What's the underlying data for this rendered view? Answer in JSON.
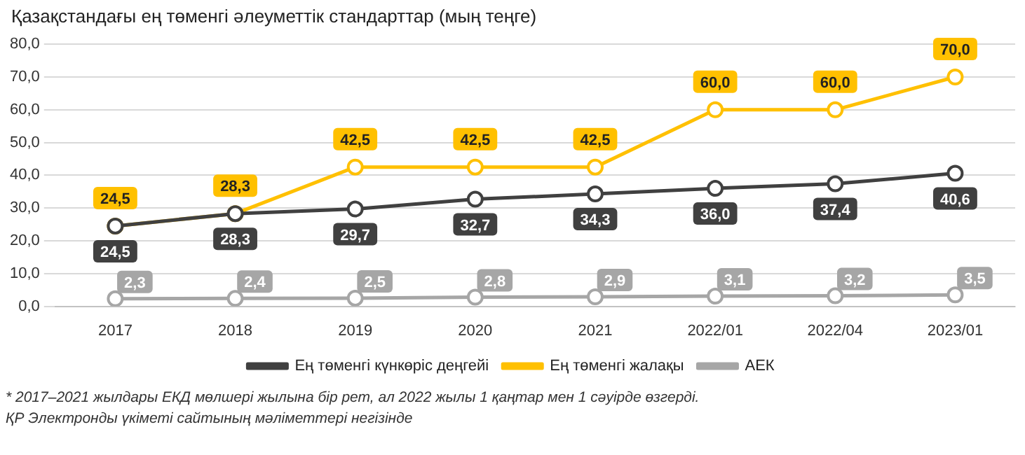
{
  "chart_data": {
    "type": "line",
    "title": "Қазақстандағы ең төменгі әлеуметтік стандарттар (мың теңге)",
    "categories": [
      "2017",
      "2018",
      "2019",
      "2020",
      "2021",
      "2022/01",
      "2022/04",
      "2023/01"
    ],
    "series": [
      {
        "name": "Ең төменгі күнкөріс деңгейі",
        "color": "#404040",
        "values": [
          24.5,
          28.3,
          29.7,
          32.7,
          34.3,
          36.0,
          37.4,
          40.6
        ],
        "value_labels": [
          "24,5",
          "28,3",
          "29,7",
          "32,7",
          "34,3",
          "36,0",
          "37,4",
          "40,6"
        ]
      },
      {
        "name": "Ең төменгі жалақы",
        "color": "#ffc000",
        "values": [
          24.5,
          28.3,
          42.5,
          42.5,
          42.5,
          60.0,
          60.0,
          70.0
        ],
        "value_labels": [
          "24,5",
          "28,3",
          "42,5",
          "42,5",
          "42,5",
          "60,0",
          "60,0",
          "70,0"
        ]
      },
      {
        "name": "АЕК",
        "color": "#a6a6a6",
        "values": [
          2.3,
          2.4,
          2.5,
          2.8,
          2.9,
          3.1,
          3.2,
          3.5
        ],
        "value_labels": [
          "2,3",
          "2,4",
          "2,5",
          "2,8",
          "2,9",
          "3,1",
          "3,2",
          "3,5"
        ]
      }
    ],
    "ylim": [
      0,
      80
    ],
    "yticks": [
      {
        "value": 0,
        "label": "0,0"
      },
      {
        "value": 10,
        "label": "10,0"
      },
      {
        "value": 20,
        "label": "20,0"
      },
      {
        "value": 30,
        "label": "30,0"
      },
      {
        "value": 40,
        "label": "40,0"
      },
      {
        "value": 50,
        "label": "50,0"
      },
      {
        "value": 60,
        "label": "60,0"
      },
      {
        "value": 70,
        "label": "70,0"
      },
      {
        "value": 80,
        "label": "80,0"
      }
    ],
    "grid": "y",
    "legend": "bottom",
    "marker": "circle",
    "line_style": "solid",
    "annotations": [
      "* 2017–2021 жылдары ЕКД мөлшері жылына бір рет, ал 2022 жылы 1 қаңтар мен 1 сәуірде өзгерді.",
      "ҚР Электронды үкіметі сайтының мәліметтері негізінде"
    ]
  }
}
